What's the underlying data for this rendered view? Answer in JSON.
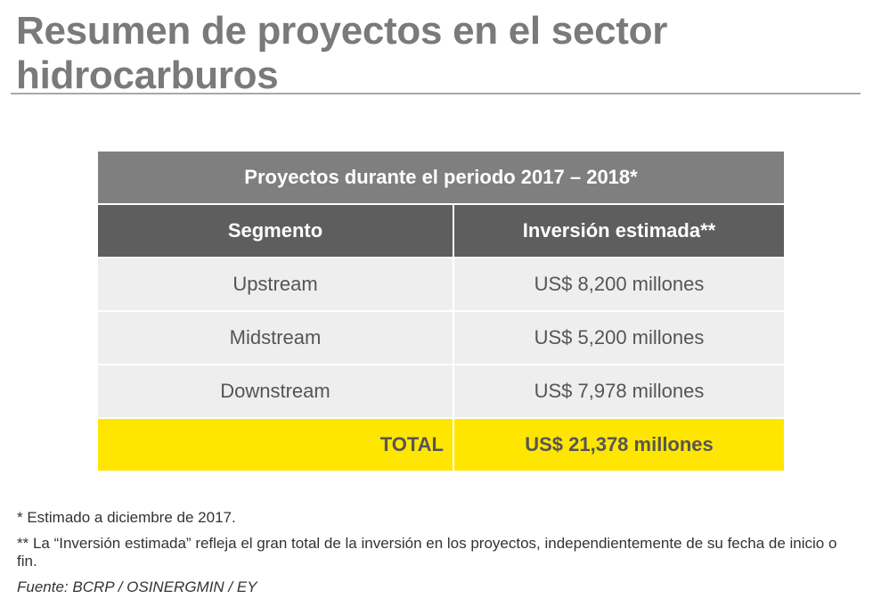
{
  "page": {
    "title": "Resumen de proyectos en el sector hidrocarburos"
  },
  "table": {
    "caption": "Proyectos durante el periodo 2017 – 2018*",
    "headers": [
      "Segmento",
      "Inversión estimada**"
    ],
    "rows": [
      {
        "segment": "Upstream",
        "investment": "US$ 8,200 millones"
      },
      {
        "segment": "Midstream",
        "investment": "US$ 5,200 millones"
      },
      {
        "segment": "Downstream",
        "investment": "US$ 7,978 millones"
      }
    ],
    "total": {
      "label": "TOTAL",
      "investment": "US$ 21,378 millones"
    }
  },
  "notes": {
    "note1": "* Estimado a diciembre de 2017.",
    "note2": "** La “Inversión estimada” refleja el gran total de la inversión en los proyectos, independientemente de su fecha de inicio o fin.",
    "source": "Fuente: BCRP / OSINERGMIN / EY"
  },
  "colors": {
    "title": "#7a7a7a",
    "caption_bg": "#7f7f7f",
    "header_bg": "#5e5e5e",
    "row_bg": "#eeeeee",
    "total_bg": "#ffe600"
  }
}
